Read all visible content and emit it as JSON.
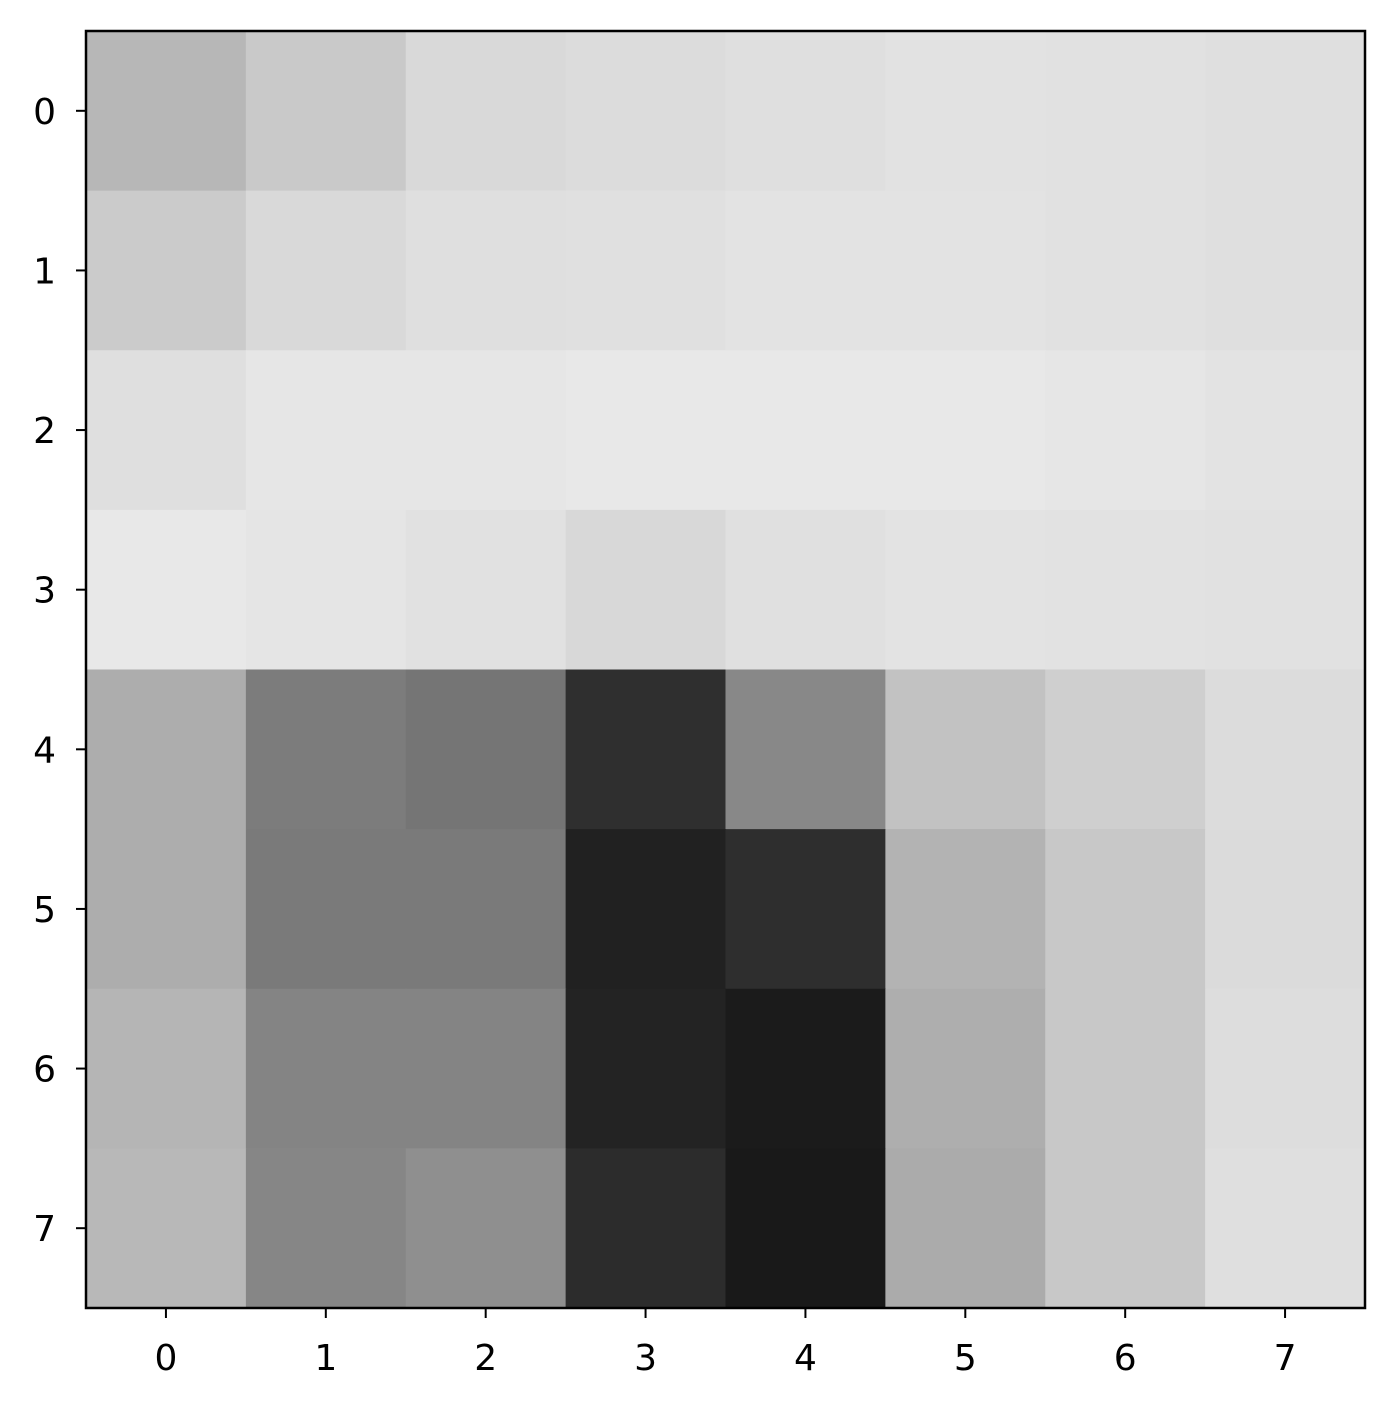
{
  "chart_data": {
    "type": "heatmap",
    "colormap": "gray",
    "title": "",
    "xlabel": "",
    "ylabel": "",
    "x_ticks": [
      "0",
      "1",
      "2",
      "3",
      "4",
      "5",
      "6",
      "7"
    ],
    "y_ticks": [
      "0",
      "1",
      "2",
      "3",
      "4",
      "5",
      "6",
      "7"
    ],
    "grid": false,
    "colorbar": false,
    "value_range": [
      0,
      255
    ],
    "values": [
      [
        183,
        201,
        217,
        220,
        223,
        226,
        225,
        223
      ],
      [
        203,
        217,
        223,
        224,
        227,
        227,
        225,
        223
      ],
      [
        223,
        230,
        230,
        232,
        232,
        232,
        230,
        227
      ],
      [
        232,
        229,
        225,
        216,
        224,
        227,
        226,
        225
      ],
      [
        173,
        124,
        117,
        47,
        136,
        194,
        207,
        220
      ],
      [
        173,
        122,
        122,
        33,
        46,
        179,
        200,
        219
      ],
      [
        181,
        132,
        132,
        35,
        27,
        174,
        200,
        221
      ],
      [
        184,
        134,
        143,
        44,
        25,
        171,
        200,
        223
      ]
    ]
  }
}
